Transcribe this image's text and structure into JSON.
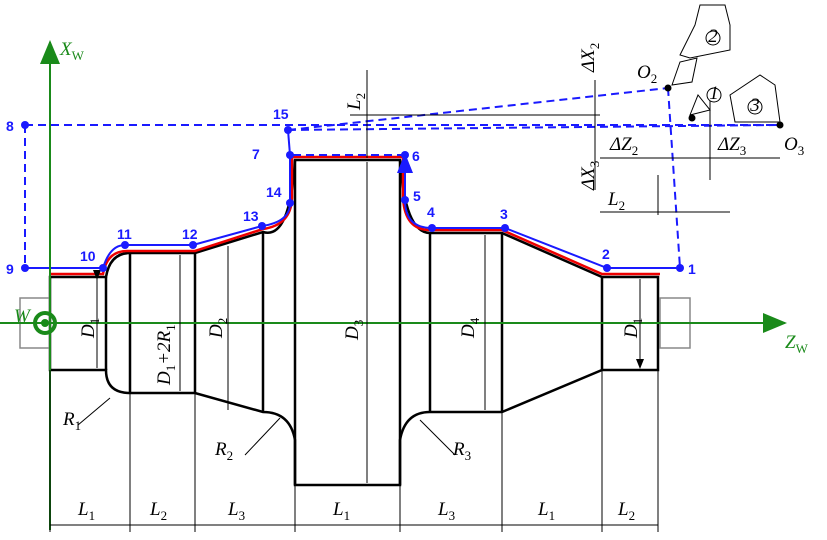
{
  "axes": {
    "x": [
      {
        "main": "X",
        "sub": "W"
      }
    ],
    "z": [
      {
        "main": "Z",
        "sub": "W"
      }
    ],
    "origin": [
      {
        "main": "W"
      }
    ]
  },
  "points": [
    "1",
    "2",
    "3",
    "4",
    "5",
    "6",
    "7",
    "8",
    "9",
    "10",
    "11",
    "12",
    "13",
    "14",
    "15"
  ],
  "tool_positions": {
    "o2": [
      {
        "main": "O",
        "sub": "2"
      }
    ],
    "o3": [
      {
        "main": "O",
        "sub": "3"
      }
    ]
  },
  "tools": [
    "2",
    "1",
    "3"
  ],
  "offsets": {
    "dx2": [
      {
        "main": "ΔX",
        "sub": "2"
      }
    ],
    "dx3": [
      {
        "main": "ΔX",
        "sub": "3"
      }
    ],
    "dz2": [
      {
        "main": "ΔZ",
        "sub": "2"
      }
    ],
    "dz3": [
      {
        "main": "ΔZ",
        "sub": "3"
      }
    ],
    "l2_top": [
      {
        "main": "L",
        "sub": "2"
      }
    ],
    "l2_right": [
      {
        "main": "L",
        "sub": "2"
      }
    ]
  },
  "diameters": [
    [
      {
        "main": "D",
        "sub": "1"
      }
    ],
    [
      {
        "main": "D",
        "sub": "1"
      },
      {
        "main": "+2R",
        "sub": "1"
      }
    ],
    [
      {
        "main": "D",
        "sub": "2"
      }
    ],
    [
      {
        "main": "D",
        "sub": "3"
      }
    ],
    [
      {
        "main": "D",
        "sub": "4"
      }
    ],
    [
      {
        "main": "D",
        "sub": "1"
      }
    ]
  ],
  "radii": [
    [
      {
        "main": "R",
        "sub": "1"
      }
    ],
    [
      {
        "main": "R",
        "sub": "2"
      }
    ],
    [
      {
        "main": "R",
        "sub": "3"
      }
    ]
  ],
  "lengths": [
    [
      {
        "main": "L",
        "sub": "1"
      }
    ],
    [
      {
        "main": "L",
        "sub": "2"
      }
    ],
    [
      {
        "main": "L",
        "sub": "3"
      }
    ],
    [
      {
        "main": "L",
        "sub": "1"
      }
    ],
    [
      {
        "main": "L",
        "sub": "3"
      }
    ],
    [
      {
        "main": "L",
        "sub": "1"
      }
    ],
    [
      {
        "main": "L",
        "sub": "2"
      }
    ]
  ]
}
